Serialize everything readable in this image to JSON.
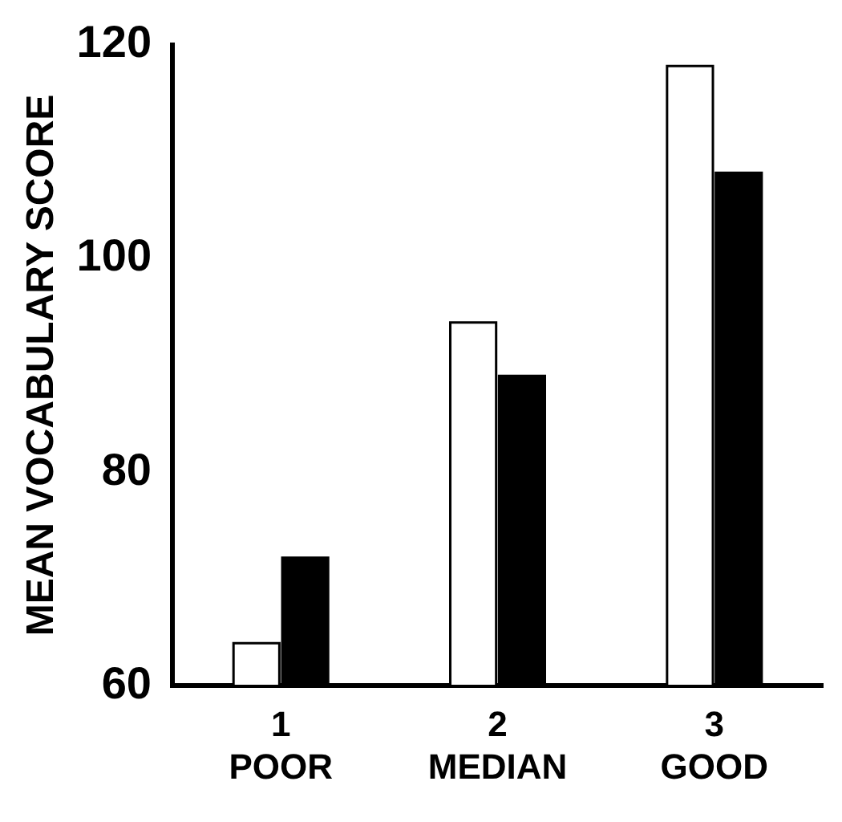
{
  "chart_data": {
    "type": "bar",
    "ylabel": "MEAN VOCABULARY SCORE",
    "categories": [
      "1\nPOOR",
      "2\nMEDIAN",
      "3\nGOOD"
    ],
    "series": [
      {
        "color": "#ffffff",
        "values": [
          64,
          94,
          118
        ]
      },
      {
        "color": "#000000",
        "values": [
          72,
          89,
          108
        ]
      }
    ],
    "ylim": [
      60,
      120
    ],
    "yticks": [
      60,
      80,
      100,
      120
    ],
    "grid": false,
    "legend": false
  }
}
